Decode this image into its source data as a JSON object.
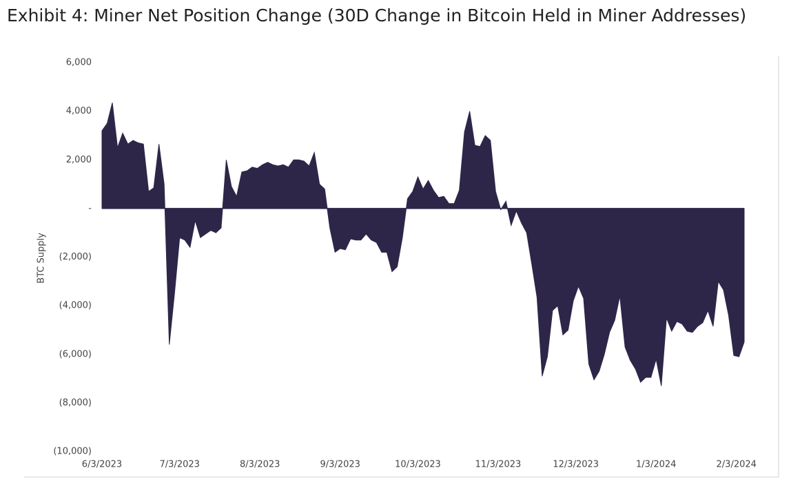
{
  "chart_data": {
    "type": "area",
    "title": "Exhibit 4: Miner Net Position Change (30D Change in Bitcoin Held in Miner Addresses)",
    "y_label": "BTC Supply",
    "color": "#2e2648",
    "x": [
      "2023-06-03",
      "2023-06-05",
      "2023-06-07",
      "2023-06-09",
      "2023-06-11",
      "2023-06-13",
      "2023-06-15",
      "2023-06-17",
      "2023-06-19",
      "2023-06-21",
      "2023-06-23",
      "2023-06-25",
      "2023-06-27",
      "2023-06-29",
      "2023-07-01",
      "2023-07-03",
      "2023-07-05",
      "2023-07-07",
      "2023-07-09",
      "2023-07-11",
      "2023-07-13",
      "2023-07-15",
      "2023-07-17",
      "2023-07-19",
      "2023-07-21",
      "2023-07-23",
      "2023-07-25",
      "2023-07-27",
      "2023-07-29",
      "2023-07-31",
      "2023-08-02",
      "2023-08-04",
      "2023-08-06",
      "2023-08-08",
      "2023-08-10",
      "2023-08-12",
      "2023-08-14",
      "2023-08-16",
      "2023-08-18",
      "2023-08-20",
      "2023-08-22",
      "2023-08-24",
      "2023-08-26",
      "2023-08-28",
      "2023-08-30",
      "2023-09-01",
      "2023-09-03",
      "2023-09-05",
      "2023-09-07",
      "2023-09-09",
      "2023-09-11",
      "2023-09-13",
      "2023-09-15",
      "2023-09-17",
      "2023-09-19",
      "2023-09-21",
      "2023-09-23",
      "2023-09-25",
      "2023-09-27",
      "2023-09-29",
      "2023-10-01",
      "2023-10-03",
      "2023-10-05",
      "2023-10-07",
      "2023-10-09",
      "2023-10-11",
      "2023-10-13",
      "2023-10-15",
      "2023-10-17",
      "2023-10-19",
      "2023-10-21",
      "2023-10-23",
      "2023-10-25",
      "2023-10-27",
      "2023-10-29",
      "2023-10-31",
      "2023-11-02",
      "2023-11-04",
      "2023-11-06",
      "2023-11-08",
      "2023-11-10",
      "2023-11-12",
      "2023-11-14",
      "2023-11-16",
      "2023-11-18",
      "2023-11-20",
      "2023-11-22",
      "2023-11-24",
      "2023-11-26",
      "2023-11-28",
      "2023-11-30",
      "2023-12-02",
      "2023-12-04",
      "2023-12-06",
      "2023-12-08",
      "2023-12-10",
      "2023-12-12",
      "2023-12-14",
      "2023-12-16",
      "2023-12-18",
      "2023-12-20",
      "2023-12-22",
      "2023-12-24",
      "2023-12-26",
      "2023-12-28",
      "2023-12-30",
      "2024-01-01",
      "2024-01-03",
      "2024-01-05",
      "2024-01-07",
      "2024-01-09",
      "2024-01-11",
      "2024-01-13",
      "2024-01-15",
      "2024-01-17",
      "2024-01-19",
      "2024-01-21",
      "2024-01-23",
      "2024-01-25",
      "2024-01-27",
      "2024-01-29",
      "2024-01-31",
      "2024-02-02",
      "2024-02-04",
      "2024-02-06"
    ],
    "values": [
      3200,
      3500,
      4350,
      2500,
      3100,
      2650,
      2800,
      2700,
      2650,
      700,
      850,
      2650,
      1000,
      -5600,
      -3500,
      -1200,
      -1300,
      -1600,
      -500,
      -1200,
      -1050,
      -900,
      -1000,
      -800,
      2000,
      900,
      500,
      1500,
      1550,
      1700,
      1650,
      1800,
      1900,
      1800,
      1750,
      1800,
      1700,
      2000,
      2000,
      1950,
      1750,
      2300,
      1000,
      800,
      -800,
      -1800,
      -1650,
      -1700,
      -1250,
      -1300,
      -1300,
      -1050,
      -1300,
      -1400,
      -1800,
      -1800,
      -2600,
      -2400,
      -1200,
      400,
      700,
      1300,
      800,
      1150,
      750,
      450,
      500,
      200,
      200,
      750,
      3150,
      4000,
      2600,
      2550,
      3000,
      2800,
      700,
      -50,
      300,
      -700,
      -100,
      -600,
      -1000,
      -2300,
      -3650,
      -6900,
      -6100,
      -4200,
      -4000,
      -5200,
      -5000,
      -3800,
      -3200,
      -3700,
      -6400,
      -7050,
      -6700,
      -6000,
      -5100,
      -4600,
      -3600,
      -5700,
      -6250,
      -6600,
      -7150,
      -6950,
      -6950,
      -6200,
      -7300,
      -4500,
      -5050,
      -4650,
      -4750,
      -5050,
      -5100,
      -4850,
      -4700,
      -4200,
      -4850,
      -3000,
      -3350,
      -4400,
      -6050,
      -6100,
      -5500
    ],
    "xlim": [
      "2023-06-03",
      "2024-02-06"
    ],
    "xticks": [
      {
        "value": "2023-06-03",
        "label": "6/3/2023"
      },
      {
        "value": "2023-07-03",
        "label": "7/3/2023"
      },
      {
        "value": "2023-08-03",
        "label": "8/3/2023"
      },
      {
        "value": "2023-09-03",
        "label": "9/3/2023"
      },
      {
        "value": "2023-10-03",
        "label": "10/3/2023"
      },
      {
        "value": "2023-11-03",
        "label": "11/3/2023"
      },
      {
        "value": "2023-12-03",
        "label": "12/3/2023"
      },
      {
        "value": "2024-01-03",
        "label": "1/3/2024"
      },
      {
        "value": "2024-02-03",
        "label": "2/3/2024"
      }
    ],
    "ylim": [
      -10000,
      6000
    ],
    "yticks": [
      {
        "value": 6000,
        "label": "6,000"
      },
      {
        "value": 4000,
        "label": "4,000"
      },
      {
        "value": 2000,
        "label": "2,000"
      },
      {
        "value": 0,
        "label": "-"
      },
      {
        "value": -2000,
        "label": "(2,000)"
      },
      {
        "value": -4000,
        "label": "(4,000)"
      },
      {
        "value": -6000,
        "label": "(6,000)"
      },
      {
        "value": -8000,
        "label": "(8,000)"
      },
      {
        "value": -10000,
        "label": "(10,000)"
      }
    ]
  }
}
